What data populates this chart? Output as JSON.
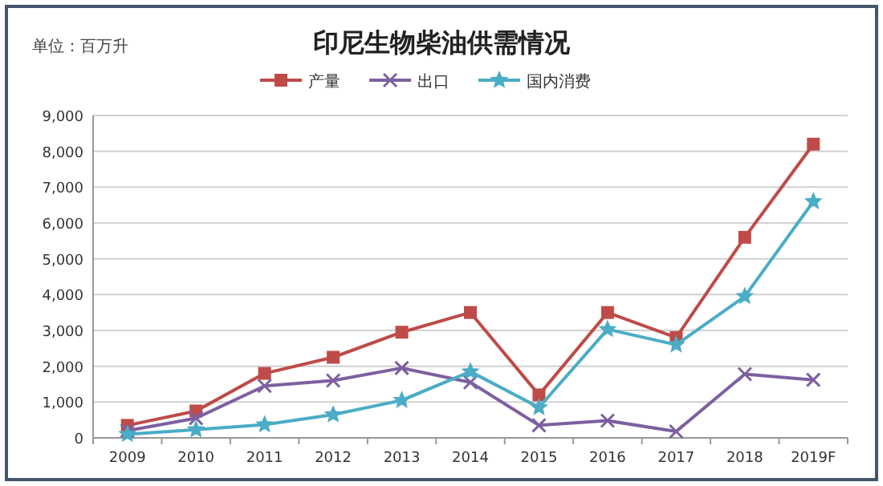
{
  "chart_data": {
    "type": "line",
    "title": "印尼生物柴油供需情况",
    "annotations": [
      "单位：百万升"
    ],
    "categories": [
      "2009",
      "2010",
      "2011",
      "2012",
      "2013",
      "2014",
      "2015",
      "2016",
      "2017",
      "2018",
      "2019F"
    ],
    "series": [
      {
        "name": "产量",
        "color": "#be4b48",
        "marker": "square",
        "values": [
          350,
          750,
          1800,
          2250,
          2950,
          3500,
          1200,
          3500,
          2800,
          5600,
          8200
        ]
      },
      {
        "name": "出口",
        "color": "#7d60a0",
        "marker": "cross",
        "values": [
          200,
          550,
          1450,
          1600,
          1950,
          1550,
          350,
          480,
          180,
          1780,
          1620
        ]
      },
      {
        "name": "国内消费",
        "color": "#4bacc6",
        "marker": "star",
        "values": [
          100,
          230,
          370,
          650,
          1050,
          1850,
          850,
          3030,
          2600,
          3950,
          6600
        ]
      }
    ],
    "ylim": [
      0,
      9000
    ],
    "yticks": [
      {
        "value": 0,
        "label": "0"
      },
      {
        "value": 1000,
        "label": "1,000"
      },
      {
        "value": 2000,
        "label": "2,000"
      },
      {
        "value": 3000,
        "label": "3,000"
      },
      {
        "value": 4000,
        "label": "4,000"
      },
      {
        "value": 5000,
        "label": "5,000"
      },
      {
        "value": 6000,
        "label": "6,000"
      },
      {
        "value": 7000,
        "label": "7,000"
      },
      {
        "value": 8000,
        "label": "8,000"
      },
      {
        "value": 9000,
        "label": "9,000"
      }
    ],
    "grid": "y",
    "legend": "top",
    "line_style": "solid"
  }
}
